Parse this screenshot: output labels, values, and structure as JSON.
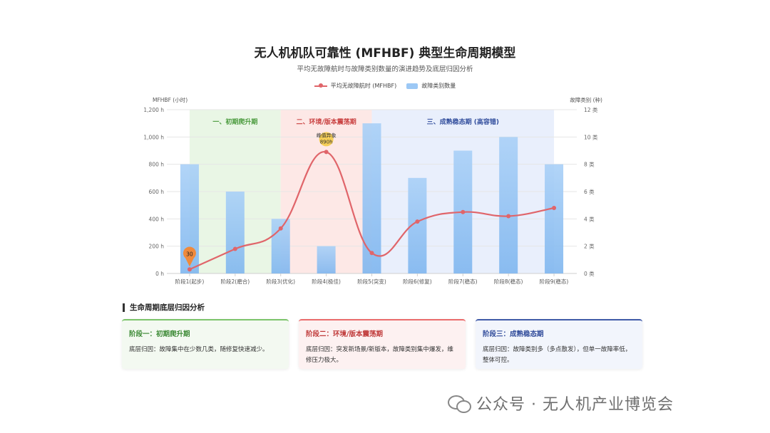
{
  "title": "无人机机队可靠性 (MFHBF) 典型生命周期模型",
  "subtitle": "平均无故障航时与故障类别数量的演进趋势及底层归因分析",
  "legend": {
    "line": "平均无故障航时 (MFHBF)",
    "bar": "故障类别数量"
  },
  "chart_data": {
    "type": "bar+line",
    "categories": [
      "阶段1(起步)",
      "阶段2(磨合)",
      "阶段3(优化)",
      "阶段4(极佳)",
      "阶段5(突变)",
      "阶段6(修复)",
      "阶段7(稳态)",
      "阶段8(稳态)",
      "阶段9(稳态)"
    ],
    "series": [
      {
        "name": "故障类别数量",
        "type": "bar",
        "axis": "right",
        "values": [
          8,
          6,
          4,
          2,
          11,
          7,
          9,
          10,
          8
        ]
      },
      {
        "name": "平均无故障航时 (MFHBF)",
        "type": "line",
        "axis": "left",
        "values": [
          30,
          180,
          330,
          890,
          150,
          380,
          450,
          420,
          480
        ]
      }
    ],
    "left_axis": {
      "label": "MFHBF (小时)",
      "min": 0,
      "max": 1200,
      "ticks": [
        "0 h",
        "200 h",
        "400 h",
        "600 h",
        "800 h",
        "1,000 h",
        "1,200 h"
      ]
    },
    "right_axis": {
      "label": "故障类别 (种)",
      "min": 0,
      "max": 12,
      "ticks": [
        "0 类",
        "2 类",
        "4 类",
        "6 类",
        "8 类",
        "10 类",
        "12 类"
      ]
    },
    "phases": [
      {
        "label": "一、初期爬升期",
        "from": 0.5,
        "to": 2.5,
        "color": "#e9f6e5",
        "text_color": "#4b9b3e"
      },
      {
        "label": "二、环境/版本震荡期",
        "from": 2.5,
        "to": 4.5,
        "color": "#fde8e6",
        "text_color": "#c94040"
      },
      {
        "label": "三、成熟稳态期 (高容错)",
        "from": 4.5,
        "to": 8.5,
        "color": "#e9effc",
        "text_color": "#34509e"
      }
    ],
    "annotations": [
      {
        "index": 0,
        "label": "30",
        "style": "pin"
      },
      {
        "index": 3,
        "label": "峰值异象",
        "value_label": "890h",
        "style": "bubble"
      }
    ],
    "colors": {
      "bar": "#9cc8f5",
      "line": "#e0656a"
    },
    "grid": true
  },
  "analysis": {
    "heading": "生命周期底层归因分析",
    "cards": [
      {
        "title": "阶段一：初期爬升期",
        "desc": "底层归因：故障集中在少数几类，随修复快速减少。"
      },
      {
        "title": "阶段二：环境/版本震荡期",
        "desc": "底层归因：突发新场景/新版本，故障类别集中爆发，维修压力极大。"
      },
      {
        "title": "阶段三：成熟稳态期",
        "desc": "底层归因：故障类别多（多点散发），但单一故障率低，整体可控。"
      }
    ]
  },
  "watermark": "公众号 · 无人机产业博览会"
}
